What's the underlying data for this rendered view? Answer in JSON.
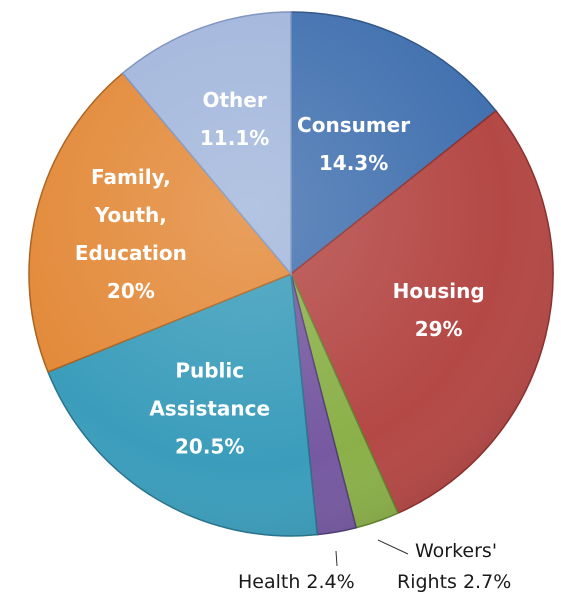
{
  "chart_data": {
    "type": "pie",
    "start_angle_deg": 0,
    "direction": "clockwise",
    "slices": [
      {
        "label": "Consumer",
        "value": 14.3,
        "value_text": "14.3%",
        "lines": [
          "Consumer",
          "14.3%"
        ],
        "color": "#4372B0",
        "edge": "#2E5587"
      },
      {
        "label": "Housing",
        "value": 29,
        "value_text": "29%",
        "lines": [
          "Housing",
          "29%"
        ],
        "color": "#B44845",
        "edge": "#8A2F2D"
      },
      {
        "label": "Workers' Rights",
        "value": 2.7,
        "value_text": "2.7%",
        "lines": [
          "Workers'",
          "Rights 2.7%"
        ],
        "color": "#8BB049",
        "edge": "#62822F",
        "callout": true
      },
      {
        "label": "Health",
        "value": 2.4,
        "value_text": "2.4%",
        "lines": [
          "Health 2.4%"
        ],
        "color": "#7659A1",
        "edge": "#523C75",
        "callout": true
      },
      {
        "label": "Public Assistance",
        "value": 20.5,
        "value_text": "20.5%",
        "lines": [
          "Public",
          "Assistance",
          "20.5%"
        ],
        "color": "#3B9DBB",
        "edge": "#27738C"
      },
      {
        "label": "Family, Youth, Education",
        "value": 20,
        "value_text": "20%",
        "lines": [
          "Family,",
          "Youth,",
          "Education",
          "20%"
        ],
        "color": "#E38A3A",
        "edge": "#A9611F"
      },
      {
        "label": "Other",
        "value": 11.1,
        "value_text": "11.1%",
        "lines": [
          "Other",
          "11.1%"
        ],
        "color": "#A3B7DC",
        "edge": "#7C93BE"
      }
    ]
  }
}
